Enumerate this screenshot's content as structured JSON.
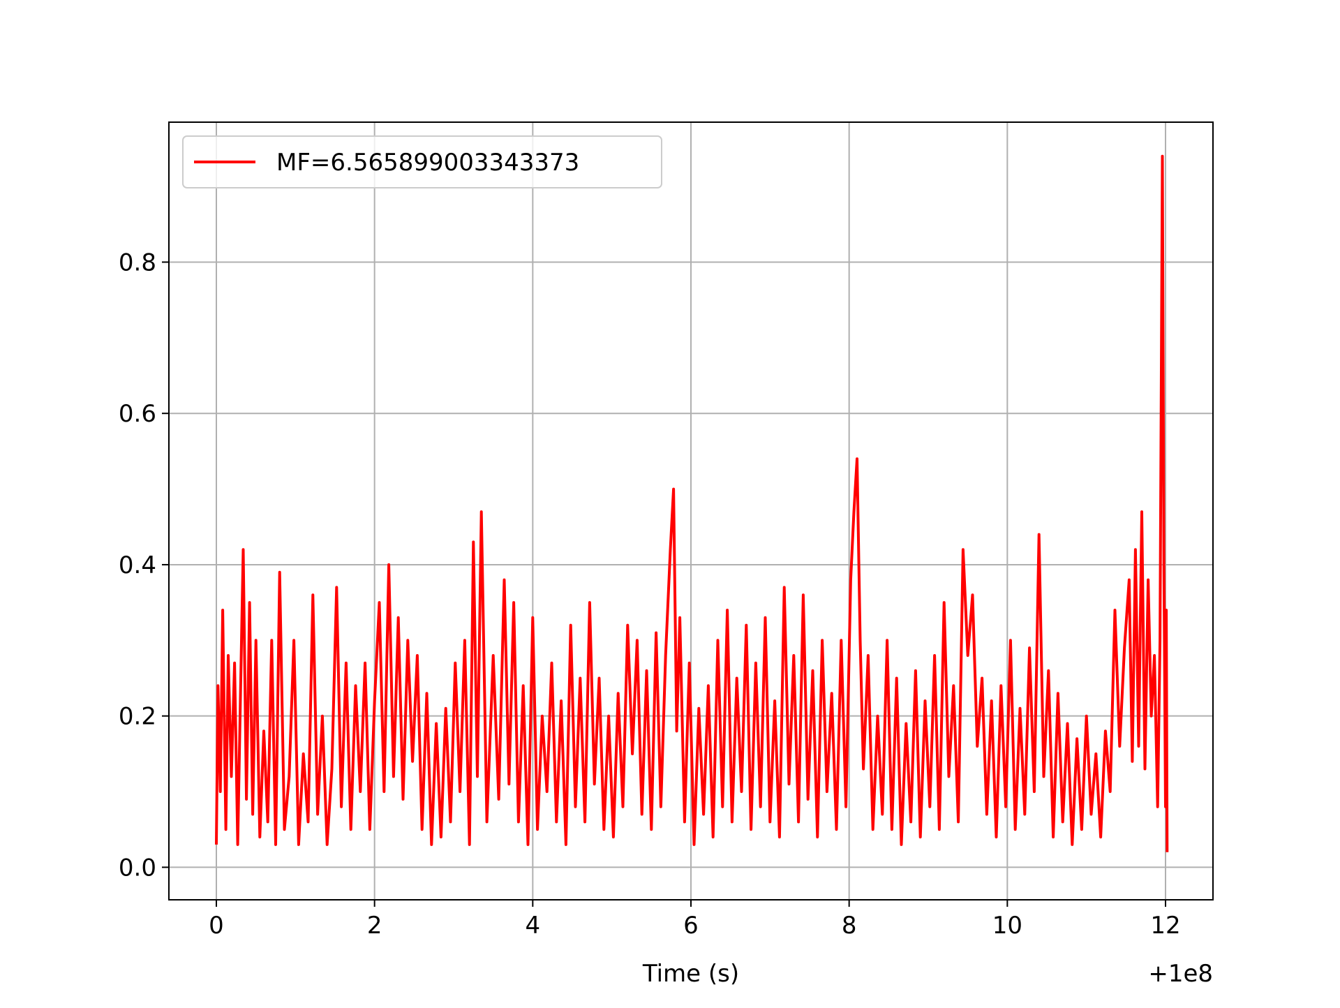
{
  "chart_data": {
    "type": "line",
    "title": "",
    "xlabel": "Time (s)",
    "ylabel": "",
    "x_offset_label": "+1e8",
    "xlim": [
      -0.6,
      12.6
    ],
    "ylim": [
      -0.043,
      0.985
    ],
    "xticks": [
      0,
      2,
      4,
      6,
      8,
      10,
      12
    ],
    "xtick_labels": [
      "0",
      "2",
      "4",
      "6",
      "8",
      "10",
      "12"
    ],
    "yticks": [
      0.0,
      0.2,
      0.4,
      0.6,
      0.8
    ],
    "ytick_labels": [
      "0.0",
      "0.2",
      "0.4",
      "0.6",
      "0.8"
    ],
    "grid": true,
    "legend_position": "upper-left",
    "x_range": [
      0,
      12
    ],
    "series": [
      {
        "name": "MF=6.565899003343373",
        "color": "#ff0000",
        "points": [
          [
            0.0,
            0.03
          ],
          [
            0.02,
            0.24
          ],
          [
            0.05,
            0.1
          ],
          [
            0.08,
            0.34
          ],
          [
            0.12,
            0.05
          ],
          [
            0.15,
            0.28
          ],
          [
            0.19,
            0.12
          ],
          [
            0.23,
            0.27
          ],
          [
            0.27,
            0.03
          ],
          [
            0.3,
            0.2
          ],
          [
            0.34,
            0.42
          ],
          [
            0.38,
            0.09
          ],
          [
            0.42,
            0.35
          ],
          [
            0.46,
            0.07
          ],
          [
            0.5,
            0.3
          ],
          [
            0.55,
            0.04
          ],
          [
            0.6,
            0.18
          ],
          [
            0.65,
            0.06
          ],
          [
            0.7,
            0.3
          ],
          [
            0.75,
            0.03
          ],
          [
            0.8,
            0.39
          ],
          [
            0.86,
            0.05
          ],
          [
            0.92,
            0.12
          ],
          [
            0.98,
            0.3
          ],
          [
            1.04,
            0.03
          ],
          [
            1.1,
            0.15
          ],
          [
            1.16,
            0.06
          ],
          [
            1.22,
            0.36
          ],
          [
            1.28,
            0.07
          ],
          [
            1.34,
            0.2
          ],
          [
            1.4,
            0.03
          ],
          [
            1.46,
            0.13
          ],
          [
            1.52,
            0.37
          ],
          [
            1.58,
            0.08
          ],
          [
            1.64,
            0.27
          ],
          [
            1.7,
            0.05
          ],
          [
            1.76,
            0.24
          ],
          [
            1.82,
            0.1
          ],
          [
            1.88,
            0.27
          ],
          [
            1.94,
            0.05
          ],
          [
            2.0,
            0.22
          ],
          [
            2.06,
            0.35
          ],
          [
            2.12,
            0.1
          ],
          [
            2.18,
            0.4
          ],
          [
            2.24,
            0.12
          ],
          [
            2.3,
            0.33
          ],
          [
            2.36,
            0.09
          ],
          [
            2.42,
            0.3
          ],
          [
            2.48,
            0.14
          ],
          [
            2.54,
            0.28
          ],
          [
            2.6,
            0.05
          ],
          [
            2.66,
            0.23
          ],
          [
            2.72,
            0.03
          ],
          [
            2.78,
            0.19
          ],
          [
            2.84,
            0.04
          ],
          [
            2.9,
            0.21
          ],
          [
            2.96,
            0.06
          ],
          [
            3.02,
            0.27
          ],
          [
            3.08,
            0.1
          ],
          [
            3.14,
            0.3
          ],
          [
            3.2,
            0.03
          ],
          [
            3.25,
            0.43
          ],
          [
            3.3,
            0.12
          ],
          [
            3.35,
            0.47
          ],
          [
            3.42,
            0.06
          ],
          [
            3.5,
            0.28
          ],
          [
            3.57,
            0.09
          ],
          [
            3.64,
            0.38
          ],
          [
            3.7,
            0.11
          ],
          [
            3.76,
            0.35
          ],
          [
            3.82,
            0.06
          ],
          [
            3.88,
            0.24
          ],
          [
            3.94,
            0.03
          ],
          [
            4.0,
            0.33
          ],
          [
            4.06,
            0.05
          ],
          [
            4.12,
            0.2
          ],
          [
            4.18,
            0.1
          ],
          [
            4.24,
            0.27
          ],
          [
            4.3,
            0.06
          ],
          [
            4.36,
            0.22
          ],
          [
            4.42,
            0.03
          ],
          [
            4.48,
            0.32
          ],
          [
            4.54,
            0.08
          ],
          [
            4.6,
            0.25
          ],
          [
            4.66,
            0.06
          ],
          [
            4.72,
            0.35
          ],
          [
            4.78,
            0.11
          ],
          [
            4.84,
            0.25
          ],
          [
            4.9,
            0.05
          ],
          [
            4.96,
            0.2
          ],
          [
            5.02,
            0.04
          ],
          [
            5.08,
            0.23
          ],
          [
            5.14,
            0.08
          ],
          [
            5.2,
            0.32
          ],
          [
            5.26,
            0.15
          ],
          [
            5.32,
            0.3
          ],
          [
            5.38,
            0.07
          ],
          [
            5.44,
            0.26
          ],
          [
            5.5,
            0.05
          ],
          [
            5.56,
            0.31
          ],
          [
            5.62,
            0.08
          ],
          [
            5.68,
            0.28
          ],
          [
            5.74,
            0.42
          ],
          [
            5.78,
            0.5
          ],
          [
            5.82,
            0.18
          ],
          [
            5.86,
            0.33
          ],
          [
            5.92,
            0.06
          ],
          [
            5.98,
            0.27
          ],
          [
            6.04,
            0.03
          ],
          [
            6.1,
            0.21
          ],
          [
            6.16,
            0.07
          ],
          [
            6.22,
            0.24
          ],
          [
            6.28,
            0.04
          ],
          [
            6.34,
            0.3
          ],
          [
            6.4,
            0.08
          ],
          [
            6.46,
            0.34
          ],
          [
            6.52,
            0.06
          ],
          [
            6.58,
            0.25
          ],
          [
            6.64,
            0.1
          ],
          [
            6.7,
            0.32
          ],
          [
            6.76,
            0.05
          ],
          [
            6.82,
            0.27
          ],
          [
            6.88,
            0.08
          ],
          [
            6.94,
            0.33
          ],
          [
            7.0,
            0.06
          ],
          [
            7.06,
            0.22
          ],
          [
            7.12,
            0.04
          ],
          [
            7.18,
            0.37
          ],
          [
            7.24,
            0.11
          ],
          [
            7.3,
            0.28
          ],
          [
            7.36,
            0.06
          ],
          [
            7.42,
            0.36
          ],
          [
            7.48,
            0.09
          ],
          [
            7.54,
            0.26
          ],
          [
            7.6,
            0.04
          ],
          [
            7.66,
            0.3
          ],
          [
            7.72,
            0.1
          ],
          [
            7.78,
            0.23
          ],
          [
            7.84,
            0.05
          ],
          [
            7.9,
            0.3
          ],
          [
            7.96,
            0.08
          ],
          [
            8.02,
            0.38
          ],
          [
            8.06,
            0.47
          ],
          [
            8.1,
            0.54
          ],
          [
            8.14,
            0.3
          ],
          [
            8.18,
            0.13
          ],
          [
            8.24,
            0.28
          ],
          [
            8.3,
            0.05
          ],
          [
            8.36,
            0.2
          ],
          [
            8.42,
            0.07
          ],
          [
            8.48,
            0.3
          ],
          [
            8.54,
            0.05
          ],
          [
            8.6,
            0.25
          ],
          [
            8.66,
            0.03
          ],
          [
            8.72,
            0.19
          ],
          [
            8.78,
            0.06
          ],
          [
            8.84,
            0.26
          ],
          [
            8.9,
            0.04
          ],
          [
            8.96,
            0.22
          ],
          [
            9.02,
            0.08
          ],
          [
            9.08,
            0.28
          ],
          [
            9.14,
            0.05
          ],
          [
            9.2,
            0.35
          ],
          [
            9.26,
            0.12
          ],
          [
            9.32,
            0.24
          ],
          [
            9.38,
            0.06
          ],
          [
            9.44,
            0.42
          ],
          [
            9.5,
            0.28
          ],
          [
            9.56,
            0.36
          ],
          [
            9.62,
            0.16
          ],
          [
            9.68,
            0.25
          ],
          [
            9.74,
            0.07
          ],
          [
            9.8,
            0.22
          ],
          [
            9.86,
            0.04
          ],
          [
            9.92,
            0.24
          ],
          [
            9.98,
            0.08
          ],
          [
            10.04,
            0.3
          ],
          [
            10.1,
            0.05
          ],
          [
            10.16,
            0.21
          ],
          [
            10.22,
            0.07
          ],
          [
            10.28,
            0.29
          ],
          [
            10.34,
            0.1
          ],
          [
            10.4,
            0.44
          ],
          [
            10.46,
            0.12
          ],
          [
            10.52,
            0.26
          ],
          [
            10.58,
            0.04
          ],
          [
            10.64,
            0.23
          ],
          [
            10.7,
            0.06
          ],
          [
            10.76,
            0.19
          ],
          [
            10.82,
            0.03
          ],
          [
            10.88,
            0.17
          ],
          [
            10.94,
            0.05
          ],
          [
            11.0,
            0.2
          ],
          [
            11.06,
            0.07
          ],
          [
            11.12,
            0.15
          ],
          [
            11.18,
            0.04
          ],
          [
            11.24,
            0.18
          ],
          [
            11.3,
            0.1
          ],
          [
            11.36,
            0.34
          ],
          [
            11.42,
            0.16
          ],
          [
            11.48,
            0.29
          ],
          [
            11.54,
            0.38
          ],
          [
            11.58,
            0.14
          ],
          [
            11.62,
            0.42
          ],
          [
            11.66,
            0.16
          ],
          [
            11.7,
            0.47
          ],
          [
            11.74,
            0.13
          ],
          [
            11.78,
            0.38
          ],
          [
            11.82,
            0.2
          ],
          [
            11.86,
            0.28
          ],
          [
            11.9,
            0.08
          ],
          [
            11.93,
            0.3
          ],
          [
            11.96,
            0.94
          ],
          [
            11.98,
            0.4
          ],
          [
            12.0,
            0.08
          ],
          [
            12.01,
            0.34
          ],
          [
            12.02,
            0.02
          ]
        ]
      }
    ]
  }
}
